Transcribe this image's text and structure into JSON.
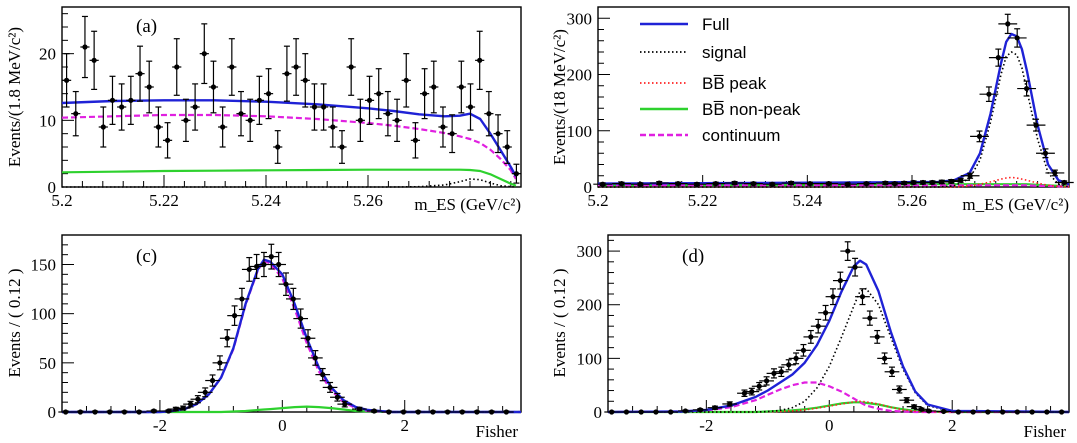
{
  "colors": {
    "full": "#1f22d6",
    "signal": "#000000",
    "bb_peak": "#ff2020",
    "bb_nonpeak": "#2ed12e",
    "continuum": "#e020e0",
    "data": "#000000"
  },
  "legend": {
    "placement": "top-left of panel (b)",
    "items": [
      {
        "key": "full",
        "label": "Full",
        "style": "solid"
      },
      {
        "key": "signal",
        "label": "signal",
        "style": "dotted"
      },
      {
        "key": "bb_peak",
        "label": "BB̅ peak",
        "style": "dotted"
      },
      {
        "key": "bb_nonpeak",
        "label": "BB̅ non-peak",
        "style": "solid"
      },
      {
        "key": "continuum",
        "label": "continuum",
        "style": "dashed"
      }
    ]
  },
  "chart_data": [
    {
      "type": "scatter",
      "panel_label": "(a)",
      "ylabel": "Events/(1.8 MeV/c²)",
      "xlabel": "m_ES (GeV/c²)",
      "xlim": [
        5.2,
        5.29
      ],
      "ylim": [
        0,
        27
      ],
      "xticks": [
        5.2,
        5.22,
        5.24,
        5.26
      ],
      "xtick_labels": [
        "5.2",
        "5.22",
        "5.24",
        "5.26"
      ],
      "yticks": [
        0,
        10,
        20
      ],
      "ytick_labels": [
        "0",
        "10",
        "20"
      ],
      "points": {
        "x": [
          5.2009,
          5.2027,
          5.2045,
          5.2063,
          5.2081,
          5.2099,
          5.2117,
          5.2135,
          5.2153,
          5.2171,
          5.2189,
          5.2207,
          5.2225,
          5.2243,
          5.2261,
          5.2279,
          5.2297,
          5.2315,
          5.2333,
          5.2351,
          5.2369,
          5.2387,
          5.2405,
          5.2423,
          5.2441,
          5.2459,
          5.2477,
          5.2495,
          5.2513,
          5.2531,
          5.2549,
          5.2567,
          5.2585,
          5.2603,
          5.2621,
          5.2639,
          5.2657,
          5.2675,
          5.2693,
          5.2711,
          5.2729,
          5.2747,
          5.2765,
          5.2783,
          5.2801,
          5.2819,
          5.2837,
          5.2855,
          5.2873,
          5.2891
        ],
        "y": [
          16,
          11,
          21,
          19,
          9,
          13,
          12,
          13,
          17,
          15,
          9,
          7,
          18,
          10,
          12,
          20,
          15,
          9,
          18,
          11,
          10,
          13,
          14,
          6,
          17,
          18,
          16,
          12,
          12,
          9,
          6,
          18,
          10,
          13,
          14,
          11,
          10,
          16,
          7,
          14,
          15,
          9,
          8,
          15,
          12,
          19,
          11,
          8,
          6,
          2
        ]
      },
      "curves": {
        "x": [
          5.2,
          5.21,
          5.22,
          5.23,
          5.24,
          5.25,
          5.26,
          5.265,
          5.27,
          5.275,
          5.278,
          5.28,
          5.282,
          5.284,
          5.286,
          5.288,
          5.289
        ],
        "full": [
          12.6,
          12.9,
          13.0,
          13.0,
          12.8,
          12.4,
          11.8,
          11.4,
          10.9,
          10.6,
          10.7,
          11.0,
          10.2,
          8.0,
          5.5,
          3.0,
          1.6
        ],
        "continuum": [
          10.4,
          10.6,
          10.8,
          10.8,
          10.6,
          10.2,
          9.6,
          9.2,
          8.7,
          8.1,
          7.6,
          7.2,
          6.6,
          5.6,
          4.2,
          2.5,
          1.2
        ],
        "bb_nonpeak": [
          2.2,
          2.3,
          2.4,
          2.45,
          2.5,
          2.55,
          2.6,
          2.6,
          2.6,
          2.6,
          2.6,
          2.55,
          2.4,
          1.9,
          1.2,
          0.5,
          0.2
        ],
        "signal": [
          0,
          0,
          0,
          0,
          0,
          0,
          0,
          0,
          0.05,
          0.3,
          0.8,
          1.2,
          1.1,
          0.6,
          0.2,
          0.05,
          0
        ]
      }
    },
    {
      "type": "scatter",
      "panel_label": "",
      "ylabel": "Events/(18 MeV/c²)",
      "xlabel": "m_ES (GeV/c²)",
      "xlim": [
        5.2,
        5.29
      ],
      "ylim": [
        0,
        320
      ],
      "xticks": [
        5.2,
        5.22,
        5.24,
        5.26
      ],
      "xtick_labels": [
        "5.2",
        "5.22",
        "5.24",
        "5.26"
      ],
      "yticks": [
        0,
        100,
        200,
        300
      ],
      "ytick_labels": [
        "0",
        "100",
        "200",
        "300"
      ],
      "points": {
        "x": [
          5.2009,
          5.2045,
          5.2081,
          5.2117,
          5.2153,
          5.2189,
          5.2225,
          5.2261,
          5.2297,
          5.2333,
          5.2369,
          5.2405,
          5.2441,
          5.2477,
          5.2513,
          5.2549,
          5.2567,
          5.2585,
          5.2603,
          5.2621,
          5.2639,
          5.2657,
          5.2675,
          5.2693,
          5.2711,
          5.2729,
          5.2747,
          5.2765,
          5.2783,
          5.2801,
          5.2819,
          5.2837,
          5.2855,
          5.2873,
          5.2891
        ],
        "y": [
          5,
          6,
          5,
          7,
          6,
          5,
          6,
          7,
          6,
          5,
          7,
          6,
          6,
          5,
          6,
          7,
          6,
          7,
          8,
          8,
          8,
          9,
          10,
          12,
          20,
          90,
          165,
          230,
          290,
          265,
          175,
          110,
          60,
          25,
          8
        ]
      },
      "curves": {
        "x": [
          5.2,
          5.25,
          5.265,
          5.268,
          5.271,
          5.273,
          5.275,
          5.277,
          5.278,
          5.279,
          5.28,
          5.281,
          5.282,
          5.284,
          5.286,
          5.288,
          5.29
        ],
        "full": [
          6,
          8,
          9,
          12,
          25,
          60,
          130,
          220,
          258,
          272,
          268,
          245,
          205,
          110,
          40,
          12,
          5
        ],
        "signal": [
          0,
          0,
          0,
          2,
          15,
          48,
          115,
          200,
          232,
          240,
          235,
          212,
          170,
          85,
          25,
          5,
          0
        ],
        "bb_peak": [
          0,
          0,
          0,
          0,
          2,
          5,
          9,
          14,
          16,
          17,
          16,
          14,
          12,
          7,
          3,
          1,
          0
        ],
        "bb_nonpeak": [
          3,
          4,
          5,
          5,
          5,
          5,
          5,
          5,
          5,
          5,
          5,
          5,
          5,
          4,
          3,
          2,
          1
        ],
        "continuum": [
          3,
          3,
          3,
          3,
          3,
          3,
          3,
          3,
          3,
          3,
          3,
          3,
          3,
          2,
          2,
          1,
          1
        ]
      }
    },
    {
      "type": "scatter",
      "panel_label": "(c)",
      "ylabel": "Events / ( 0.12 )",
      "xlabel": "Fisher",
      "xlim": [
        -3.6,
        3.9
      ],
      "ylim": [
        0,
        180
      ],
      "xticks": [
        -2,
        0,
        2
      ],
      "xtick_labels": [
        "-2",
        "0",
        "2"
      ],
      "yticks": [
        0,
        50,
        100,
        150
      ],
      "ytick_labels": [
        "0",
        "50",
        "100",
        "150"
      ],
      "points": {
        "x": [
          -3.54,
          -3.3,
          -3.06,
          -2.82,
          -2.58,
          -2.34,
          -2.1,
          -1.86,
          -1.74,
          -1.62,
          -1.5,
          -1.38,
          -1.26,
          -1.14,
          -1.02,
          -0.9,
          -0.78,
          -0.66,
          -0.54,
          -0.42,
          -0.3,
          -0.18,
          -0.06,
          0.06,
          0.18,
          0.3,
          0.42,
          0.54,
          0.66,
          0.78,
          0.9,
          1.02,
          1.26,
          1.5,
          1.74,
          1.98,
          2.22,
          2.46,
          2.7,
          2.94,
          3.18,
          3.42,
          3.66
        ],
        "y": [
          0,
          0,
          0,
          0,
          0,
          0,
          1,
          1,
          3,
          4,
          8,
          13,
          20,
          32,
          50,
          75,
          98,
          115,
          145,
          148,
          150,
          158,
          150,
          130,
          115,
          95,
          75,
          55,
          38,
          25,
          15,
          8,
          3,
          1,
          0,
          0,
          0,
          0,
          0,
          0,
          0,
          0,
          0
        ]
      },
      "curves": {
        "x": [
          -3.6,
          -2.0,
          -1.8,
          -1.6,
          -1.4,
          -1.2,
          -1.0,
          -0.8,
          -0.6,
          -0.4,
          -0.3,
          -0.2,
          0.0,
          0.2,
          0.4,
          0.6,
          0.8,
          1.0,
          1.2,
          1.4,
          1.8,
          3.9
        ],
        "full": [
          0,
          0,
          1,
          3,
          8,
          18,
          35,
          65,
          110,
          145,
          155,
          153,
          140,
          110,
          75,
          45,
          25,
          12,
          5,
          2,
          0,
          0
        ],
        "continuum": [
          0,
          0,
          1,
          3,
          8,
          18,
          35,
          64,
          109,
          144,
          154,
          151,
          136,
          105,
          70,
          41,
          22,
          10,
          4,
          1,
          0,
          0
        ],
        "bb_nonpeak": [
          0,
          0,
          0,
          0,
          0,
          0,
          0,
          0.5,
          1,
          2,
          2.5,
          3,
          4,
          5,
          5.5,
          5,
          4,
          2.5,
          1,
          0.5,
          0,
          0
        ]
      }
    },
    {
      "type": "scatter",
      "panel_label": "(d)",
      "ylabel": "Events / ( 0.12 )",
      "xlabel": "Fisher",
      "xlim": [
        -3.6,
        3.9
      ],
      "ylim": [
        0,
        330
      ],
      "xticks": [
        -2,
        0,
        2
      ],
      "xtick_labels": [
        "-2",
        "0",
        "2"
      ],
      "yticks": [
        0,
        100,
        200,
        300
      ],
      "ytick_labels": [
        "0",
        "100",
        "200",
        "300"
      ],
      "points": {
        "x": [
          -3.54,
          -3.3,
          -3.06,
          -2.82,
          -2.58,
          -2.34,
          -2.1,
          -1.86,
          -1.62,
          -1.38,
          -1.26,
          -1.14,
          -1.02,
          -0.9,
          -0.78,
          -0.66,
          -0.54,
          -0.42,
          -0.3,
          -0.18,
          -0.06,
          0.06,
          0.18,
          0.3,
          0.42,
          0.54,
          0.66,
          0.78,
          0.9,
          1.02,
          1.14,
          1.26,
          1.38,
          1.5,
          1.62,
          1.86,
          2.1,
          2.34,
          2.58,
          2.82,
          3.06,
          3.3,
          3.54,
          3.78
        ],
        "y": [
          0,
          0,
          0,
          0,
          0,
          2,
          4,
          8,
          15,
          35,
          38,
          48,
          58,
          72,
          75,
          88,
          100,
          115,
          140,
          160,
          185,
          215,
          245,
          300,
          270,
          215,
          175,
          140,
          100,
          75,
          42,
          22,
          10,
          5,
          2,
          1,
          0,
          0,
          0,
          0,
          0,
          0,
          0,
          0
        ]
      },
      "curves": {
        "x": [
          -3.6,
          -2.4,
          -2.0,
          -1.6,
          -1.2,
          -1.0,
          -0.8,
          -0.6,
          -0.4,
          -0.2,
          0.0,
          0.2,
          0.4,
          0.5,
          0.6,
          0.8,
          1.0,
          1.2,
          1.4,
          1.6,
          2.0,
          3.9
        ],
        "full": [
          0,
          1,
          4,
          12,
          28,
          40,
          55,
          70,
          92,
          125,
          170,
          225,
          272,
          282,
          275,
          225,
          150,
          85,
          38,
          14,
          2,
          0
        ],
        "signal": [
          0,
          0,
          0,
          0,
          0,
          1,
          3,
          8,
          20,
          45,
          85,
          140,
          198,
          225,
          230,
          200,
          140,
          80,
          36,
          12,
          1,
          0
        ],
        "continuum": [
          0,
          1,
          3,
          9,
          22,
          32,
          42,
          50,
          55,
          55,
          48,
          38,
          25,
          18,
          12,
          6,
          2,
          1,
          0,
          0,
          0,
          0
        ],
        "bb_peak": [
          0,
          0,
          0,
          0,
          0,
          0.5,
          1,
          2,
          4,
          7,
          11,
          15,
          19,
          20,
          19,
          15,
          9,
          4,
          1.5,
          0.5,
          0,
          0
        ],
        "bb_nonpeak": [
          0,
          0,
          0,
          0,
          0,
          1,
          2,
          3,
          5,
          8,
          12,
          16,
          18,
          18,
          17,
          14,
          9,
          5,
          2,
          1,
          0,
          0
        ]
      }
    }
  ]
}
